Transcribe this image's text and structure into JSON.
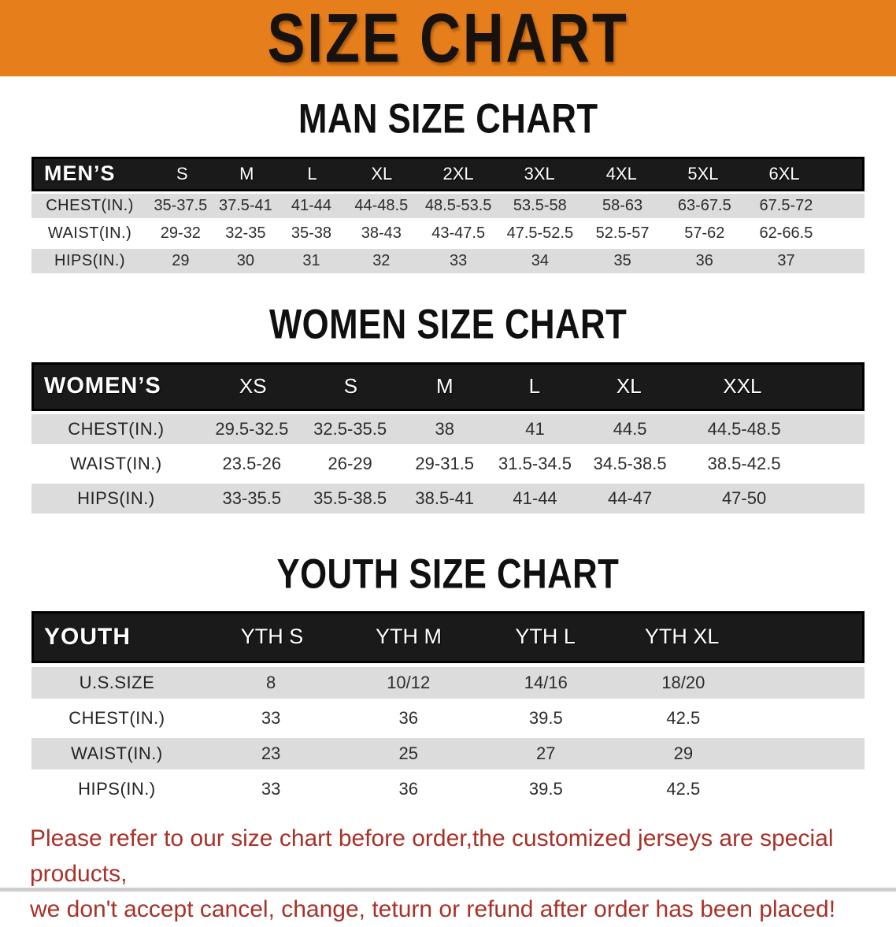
{
  "banner": {
    "title": "SIZE CHART"
  },
  "colors": {
    "banner_bg": "#E67E1B",
    "banner_text": "#17120E",
    "table_header_bg": "#1A1A1A",
    "table_header_text": "#FFFFFF",
    "row_shaded_bg": "#DCDCDC",
    "row_plain_bg": "#FFFFFF",
    "note_text": "#A83228"
  },
  "sections": [
    {
      "heading": "MAN SIZE CHART",
      "table": {
        "header": [
          "MEN’S",
          "S",
          "M",
          "L",
          "XL",
          "2XL",
          "3XL",
          "4XL",
          "5XL",
          "6XL"
        ],
        "rows": [
          {
            "label": "CHEST(IN.)",
            "values": [
              "35-37.5",
              "37.5-41",
              "41-44",
              "44-48.5",
              "48.5-53.5",
              "53.5-58",
              "58-63",
              "63-67.5",
              "67.5-72"
            ]
          },
          {
            "label": "WAIST(IN.)",
            "values": [
              "29-32",
              "32-35",
              "35-38",
              "38-43",
              "43-47.5",
              "47.5-52.5",
              "52.5-57",
              "57-62",
              "62-66.5"
            ]
          },
          {
            "label": "HIPS(IN.)",
            "values": [
              "29",
              "30",
              "31",
              "32",
              "33",
              "34",
              "35",
              "36",
              "37"
            ]
          }
        ]
      }
    },
    {
      "heading": "WOMEN SIZE CHART",
      "table": {
        "header": [
          "WOMEN’S",
          "XS",
          "S",
          "M",
          "L",
          "XL",
          "XXL"
        ],
        "rows": [
          {
            "label": "CHEST(IN.)",
            "values": [
              "29.5-32.5",
              "32.5-35.5",
              "38",
              "41",
              "44.5",
              "44.5-48.5"
            ]
          },
          {
            "label": "WAIST(IN.)",
            "values": [
              "23.5-26",
              "26-29",
              "29-31.5",
              "31.5-34.5",
              "34.5-38.5",
              "38.5-42.5"
            ]
          },
          {
            "label": "HIPS(IN.)",
            "values": [
              "33-35.5",
              "35.5-38.5",
              "38.5-41",
              "41-44",
              "44-47",
              "47-50"
            ]
          }
        ]
      }
    },
    {
      "heading": "YOUTH SIZE CHART",
      "table": {
        "header": [
          "YOUTH",
          "YTH S",
          "YTH M",
          "YTH L",
          "YTH XL"
        ],
        "rows": [
          {
            "label": "U.S.SIZE",
            "values": [
              "8",
              "10/12",
              "14/16",
              "18/20"
            ]
          },
          {
            "label": "CHEST(IN.)",
            "values": [
              "33",
              "36",
              "39.5",
              "42.5"
            ]
          },
          {
            "label": "WAIST(IN.)",
            "values": [
              "23",
              "25",
              "27",
              "29"
            ]
          },
          {
            "label": "HIPS(IN.)",
            "values": [
              "33",
              "36",
              "39.5",
              "42.5"
            ]
          }
        ]
      }
    }
  ],
  "note": {
    "line1": "Please refer to our size chart before order,the customized jerseys are special products,",
    "line2": "we don't accept cancel, change, teturn or refund after order has been placed!"
  }
}
